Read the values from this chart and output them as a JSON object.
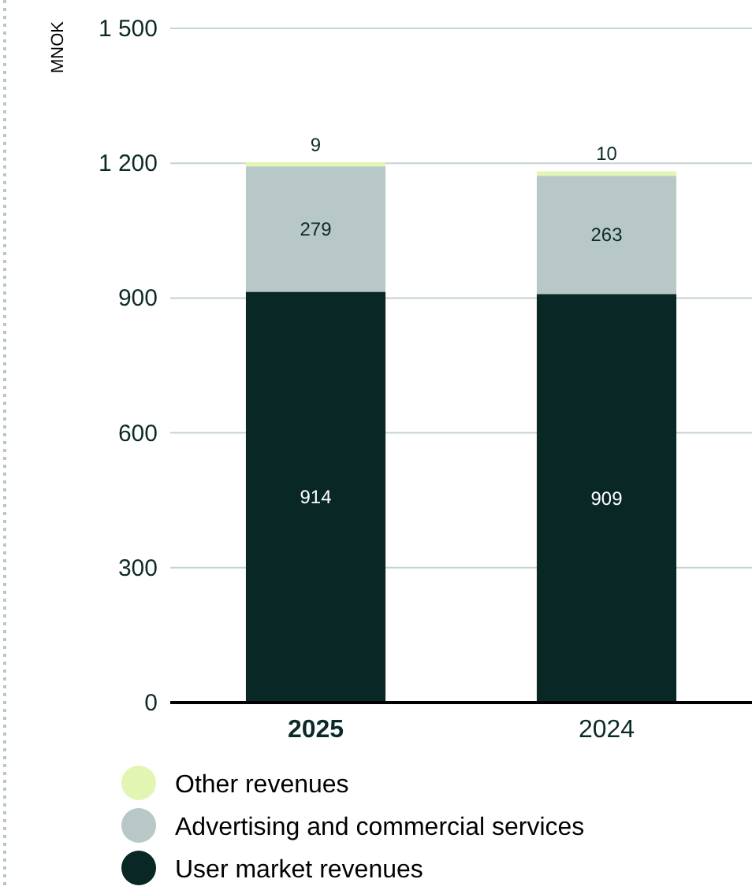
{
  "chart_data": {
    "type": "bar",
    "stacked": true,
    "ylabel": "MNOK",
    "categories": [
      "2025",
      "2024"
    ],
    "series": [
      {
        "name": "User market revenues",
        "color": "#082725",
        "values": [
          914,
          909
        ]
      },
      {
        "name": "Advertising and commercial services",
        "color": "#b7c8c6",
        "values": [
          279,
          263
        ]
      },
      {
        "name": "Other revenues",
        "color": "#e3f5b3",
        "values": [
          9,
          10
        ]
      }
    ],
    "ylim": [
      0,
      1500
    ],
    "yticks": [
      0,
      300,
      600,
      900,
      {
        "value": 1200,
        "label": "1 200"
      },
      {
        "value": 1500,
        "label": "1 500"
      }
    ],
    "grid": "y",
    "legend": "bottom",
    "data_labels": true
  }
}
